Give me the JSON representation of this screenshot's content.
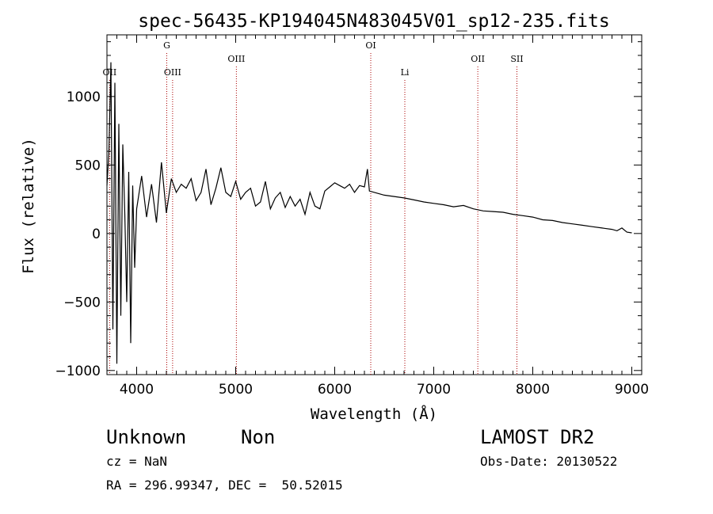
{
  "chart_data": {
    "type": "line",
    "title": "spec-56435-KP194045N483045V01_sp12-235.fits",
    "xlabel": "Wavelength (Å)",
    "ylabel": "Flux (relative)",
    "xlim": [
      3700,
      9100
    ],
    "ylim": [
      -1030,
      1450
    ],
    "x_ticks": [
      4000,
      5000,
      6000,
      7000,
      8000,
      9000
    ],
    "x_tick_labels": [
      "4000",
      "5000",
      "6000",
      "7000",
      "8000",
      "9000"
    ],
    "y_ticks": [
      -1000,
      -500,
      0,
      500,
      1000
    ],
    "y_tick_labels": [
      "−1000",
      "−500",
      "0",
      "500",
      "1000"
    ],
    "grid": false,
    "series": [
      {
        "color": "#000000",
        "x": [
          3700,
          3720,
          3740,
          3760,
          3780,
          3800,
          3820,
          3840,
          3860,
          3880,
          3900,
          3920,
          3940,
          3960,
          3980,
          4000,
          4050,
          4100,
          4150,
          4200,
          4250,
          4300,
          4350,
          4400,
          4450,
          4500,
          4550,
          4600,
          4650,
          4700,
          4750,
          4800,
          4850,
          4900,
          4950,
          5000,
          5050,
          5100,
          5150,
          5200,
          5250,
          5300,
          5350,
          5400,
          5450,
          5500,
          5550,
          5600,
          5650,
          5700,
          5750,
          5800,
          5850,
          5900,
          5950,
          6000,
          6050,
          6100,
          6150,
          6200,
          6250,
          6300,
          6330,
          6350,
          6400,
          6450,
          6500,
          6600,
          6700,
          6800,
          6900,
          7000,
          7100,
          7200,
          7300,
          7400,
          7500,
          7600,
          7700,
          7800,
          7900,
          8000,
          8100,
          8200,
          8300,
          8400,
          8500,
          8600,
          8700,
          8800,
          8850,
          8900,
          8950,
          9000
        ],
        "y": [
          350,
          600,
          1250,
          -700,
          1100,
          -950,
          800,
          -600,
          650,
          150,
          -500,
          450,
          -800,
          350,
          -250,
          180,
          420,
          120,
          360,
          80,
          520,
          150,
          400,
          300,
          360,
          330,
          400,
          240,
          300,
          470,
          210,
          330,
          480,
          300,
          270,
          380,
          250,
          300,
          330,
          200,
          230,
          380,
          180,
          260,
          300,
          190,
          270,
          200,
          250,
          140,
          300,
          200,
          180,
          310,
          340,
          370,
          350,
          330,
          360,
          300,
          350,
          340,
          470,
          310,
          300,
          290,
          280,
          270,
          260,
          245,
          230,
          220,
          210,
          195,
          205,
          180,
          165,
          160,
          155,
          140,
          130,
          120,
          100,
          95,
          80,
          70,
          60,
          50,
          40,
          30,
          20,
          40,
          10,
          5
        ]
      }
    ],
    "annotations": [
      {
        "label": "OII",
        "x": 3727,
        "row": "low"
      },
      {
        "label": "G",
        "x": 4304,
        "row": "high"
      },
      {
        "label": "OIII",
        "x": 4363,
        "row": "low"
      },
      {
        "label": "OIII",
        "x": 5007,
        "row": "mid"
      },
      {
        "label": "OI",
        "x": 6364,
        "row": "high"
      },
      {
        "label": "Li",
        "x": 6708,
        "row": "low"
      },
      {
        "label": "OII",
        "x": 7445,
        "row": "mid"
      },
      {
        "label": "SII",
        "x": 7840,
        "row": "mid"
      }
    ],
    "line_color": "#aa0000"
  },
  "info": {
    "class": "Unknown",
    "subclass": "Non",
    "cz": "cz = NaN",
    "coords": "RA = 296.99347, DEC =  50.52015",
    "survey": "LAMOST DR2",
    "obs_date": "Obs-Date: 20130522"
  }
}
